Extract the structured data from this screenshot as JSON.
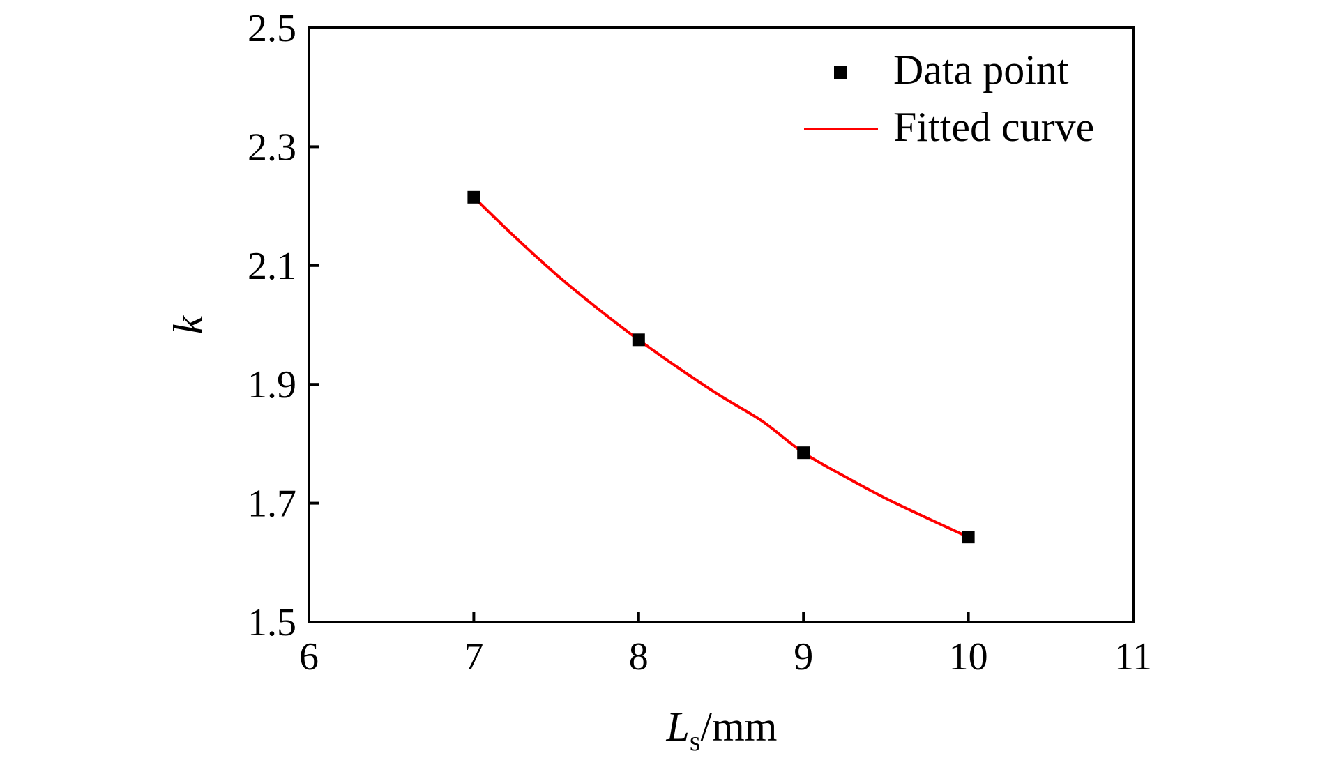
{
  "chart_data": {
    "type": "scatter",
    "title": "",
    "xlabel": {
      "main": "L",
      "subscript": "s",
      "suffix": "/mm"
    },
    "ylabel": "k",
    "xlim": [
      6,
      11
    ],
    "ylim": [
      1.5,
      2.5
    ],
    "xticks": [
      "6",
      "7",
      "8",
      "9",
      "10",
      "11"
    ],
    "yticks": [
      "1.5",
      "1.7",
      "1.9",
      "2.1",
      "2.3",
      "2.5"
    ],
    "grid": false,
    "legend_position": "top-right",
    "series": [
      {
        "name": "Data point",
        "kind": "scatter",
        "marker": "square",
        "color": "#000000",
        "x": [
          7,
          8,
          9,
          10
        ],
        "y": [
          2.215,
          1.975,
          1.785,
          1.643
        ]
      },
      {
        "name": "Fitted curve",
        "kind": "line",
        "color": "#ff0000",
        "x": [
          7,
          7.25,
          7.5,
          7.75,
          8,
          8.25,
          8.5,
          8.75,
          9,
          9.25,
          9.5,
          9.75,
          10
        ],
        "y": [
          2.215,
          2.148,
          2.085,
          2.028,
          1.975,
          1.926,
          1.88,
          1.838,
          1.785,
          1.745,
          1.708,
          1.675,
          1.643
        ]
      }
    ]
  }
}
